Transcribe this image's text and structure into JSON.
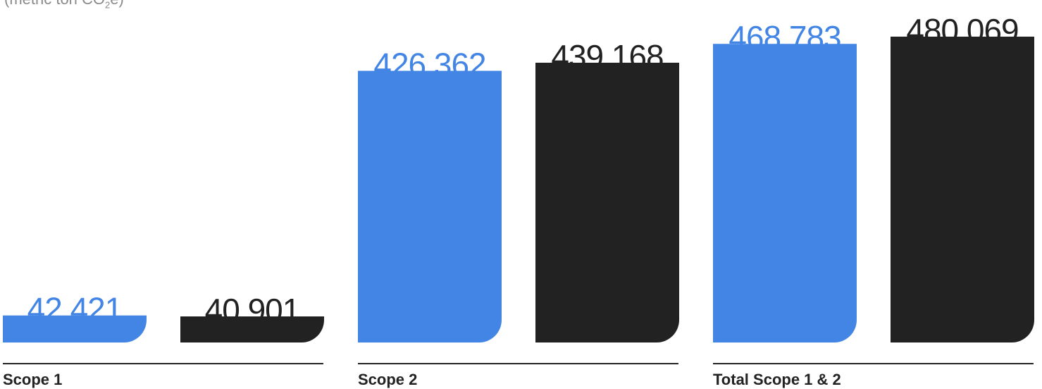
{
  "chart_data": {
    "type": "bar",
    "unit_label": {
      "prefix": "(metric ton CO",
      "subscript": "2",
      "suffix": "e)"
    },
    "categories": [
      "Scope 1",
      "Scope 2",
      "Total Scope 1 & 2"
    ],
    "series": [
      {
        "values": [
          42421,
          426362,
          468783
        ],
        "labels": [
          "42.421",
          "426.362",
          "468.783"
        ],
        "color": "#4285E5"
      },
      {
        "values": [
          40901,
          439168,
          480069
        ],
        "labels": [
          "40.901",
          "439.168",
          "480.069"
        ],
        "color": "#222222"
      }
    ],
    "ylim": [
      0,
      480069
    ],
    "grid": false,
    "legend": "none"
  }
}
